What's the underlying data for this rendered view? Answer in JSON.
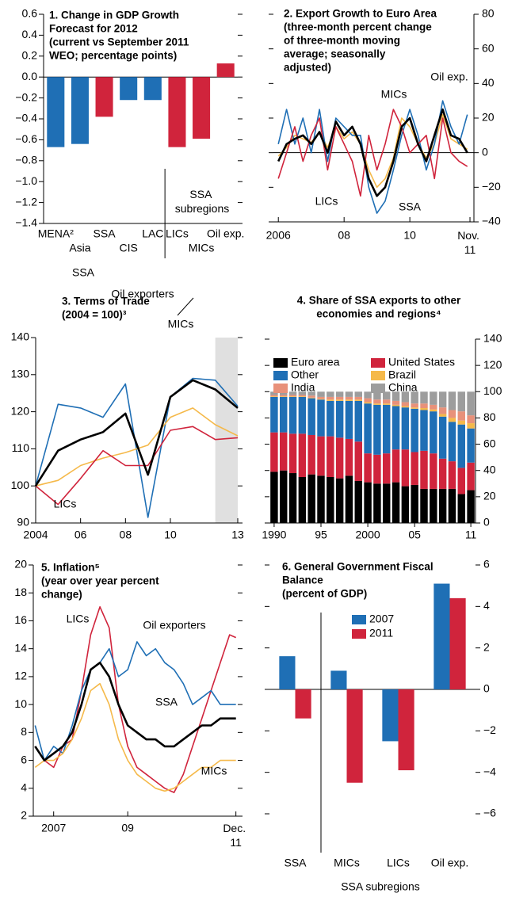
{
  "chart_data": [
    {
      "type": "bar",
      "title": [
        "1. Change in GDP Growth",
        "Forecast for 2012",
        "(current vs September 2011",
        "WEO; percentage points)"
      ],
      "categories": [
        "MENA²",
        "Asia",
        "SSA",
        "CIS",
        "LAC",
        "LICs",
        "MICs",
        "Oil exp."
      ],
      "values": [
        -0.67,
        -0.64,
        -0.38,
        -0.22,
        -0.22,
        -0.67,
        -0.59,
        0.13
      ],
      "colors": [
        "#1f6fb5",
        "#1f6fb5",
        "#d0243c",
        "#1f6fb5",
        "#1f6fb5",
        "#d0243c",
        "#d0243c",
        "#d0243c"
      ],
      "annotation": "SSA subregions",
      "ylim": [
        -1.4,
        0.6
      ],
      "yticks": [
        0.6,
        0.4,
        0.2,
        {
          "value": 0,
          "label": "0.0"
        },
        {
          "value": -0.2,
          "label": "−0.2"
        },
        {
          "value": -0.4,
          "label": "−0.4"
        },
        {
          "value": -0.6,
          "label": "−0.6"
        },
        {
          "value": -0.8,
          "label": "−0.8"
        },
        {
          "value": -1.0,
          "label": "−1.0"
        },
        {
          "value": -1.2,
          "label": "−1.2"
        },
        {
          "value": -1.4,
          "label": "−1.4"
        }
      ]
    },
    {
      "type": "line",
      "title": [
        "2. Export Growth to Euro Area",
        "(three-month  percent change",
        "of three-month moving",
        "average; seasonally",
        "adjusted)"
      ],
      "x": [
        2006,
        2006.25,
        2006.5,
        2006.75,
        2007,
        2007.25,
        2007.5,
        2007.75,
        2008,
        2008.25,
        2008.5,
        2008.75,
        2009,
        2009.25,
        2009.5,
        2009.75,
        2010,
        2010.25,
        2010.5,
        2010.75,
        2011,
        2011.25,
        2011.5,
        2011.75
      ],
      "series": [
        {
          "name": "SSA",
          "color": "#000000",
          "values": [
            -5,
            5,
            8,
            10,
            5,
            12,
            0,
            18,
            10,
            15,
            5,
            -15,
            -25,
            -20,
            -5,
            15,
            20,
            5,
            -5,
            10,
            25,
            10,
            8,
            0
          ]
        },
        {
          "name": "MICs",
          "color": "#f5b94a",
          "values": [
            -2,
            3,
            10,
            8,
            6,
            12,
            3,
            15,
            8,
            12,
            5,
            -10,
            -20,
            -15,
            -3,
            20,
            15,
            5,
            -3,
            5,
            22,
            8,
            5,
            2
          ]
        },
        {
          "name": "Oil exp.",
          "color": "#1f6fb5",
          "values": [
            5,
            25,
            5,
            20,
            0,
            25,
            -5,
            20,
            15,
            10,
            10,
            -20,
            -35,
            -28,
            -10,
            10,
            25,
            10,
            -10,
            5,
            30,
            15,
            5,
            22
          ]
        },
        {
          "name": "LICs",
          "color": "#d0243c",
          "values": [
            -15,
            0,
            15,
            -5,
            10,
            20,
            -10,
            15,
            5,
            -5,
            -25,
            10,
            -10,
            5,
            25,
            15,
            0,
            5,
            10,
            -15,
            20,
            0,
            -5,
            -8
          ]
        }
      ],
      "xlim": [
        2005.85,
        2011.95
      ],
      "xticks": [
        2006,
        {
          "value": 2008,
          "label": "08"
        },
        {
          "value": 2010,
          "label": "10"
        },
        {
          "value": 2011.83,
          "label": "Nov. 11"
        }
      ],
      "ylim": [
        -40,
        80
      ],
      "yticks": [
        {
          "value": -40,
          "label": "−40"
        },
        {
          "value": -20,
          "label": "−20"
        },
        0,
        20,
        40,
        60,
        80
      ]
    },
    {
      "type": "line",
      "title": [
        "3. Terms of Trade",
        "(2004 = 100)³"
      ],
      "x": [
        2004,
        2005,
        2006,
        2007,
        2008,
        2009,
        2010,
        2011,
        2012,
        2013
      ],
      "series": [
        {
          "name": "Oil exporters",
          "color": "#1f6fb5",
          "values": [
            100,
            122,
            121,
            118.5,
            127.5,
            91.5,
            124,
            129,
            128.5,
            121.5
          ]
        },
        {
          "name": "SSA",
          "color": "#000000",
          "values": [
            100,
            109.5,
            112.5,
            114.5,
            119.5,
            103,
            124,
            128.5,
            126,
            121
          ]
        },
        {
          "name": "MICs",
          "color": "#f5b94a",
          "values": [
            100,
            101.5,
            105.5,
            107.5,
            109,
            111,
            118.5,
            121,
            116.5,
            113.5
          ]
        },
        {
          "name": "LICs",
          "color": "#d0243c",
          "values": [
            100,
            95,
            102,
            109.5,
            105.5,
            105.5,
            115,
            116,
            112.5,
            113
          ]
        }
      ],
      "shaded_span": [
        2012,
        2013
      ],
      "xlim": [
        2004,
        2013
      ],
      "xticks": [
        2004,
        {
          "value": 2006,
          "label": "06"
        },
        {
          "value": 2008,
          "label": "08"
        },
        {
          "value": 2010,
          "label": "10"
        },
        {
          "value": 2013,
          "label": "13"
        }
      ],
      "ylim": [
        90,
        140
      ],
      "yticks": [
        90,
        100,
        110,
        120,
        130,
        140
      ]
    },
    {
      "type": "bar",
      "stacked": true,
      "title": [
        "4. Share of SSA exports to other",
        "economies and regions⁴"
      ],
      "categories": [
        "1990",
        null,
        null,
        null,
        null,
        "95",
        null,
        null,
        null,
        null,
        "2000",
        null,
        null,
        null,
        null,
        "05",
        null,
        null,
        null,
        null,
        null,
        "11"
      ],
      "series": [
        {
          "name": "Euro area",
          "color": "#000000",
          "values": [
            39,
            40,
            38,
            35,
            37,
            36,
            35,
            34,
            36,
            32,
            31,
            30,
            30,
            31,
            28,
            29,
            26,
            26,
            26,
            26,
            22,
            25
          ]
        },
        {
          "name": "United States",
          "color": "#d0243c",
          "values": [
            30,
            29,
            30,
            33,
            30,
            30,
            31,
            31,
            28,
            30,
            22,
            22,
            23,
            25,
            28,
            25,
            29,
            27,
            23,
            21,
            20,
            21
          ]
        },
        {
          "name": "Other",
          "color": "#1f6fb5",
          "values": [
            27,
            27,
            28,
            28,
            28,
            28,
            27,
            28,
            29,
            31,
            38,
            38,
            37,
            33,
            32,
            33,
            31,
            32,
            32,
            30,
            33,
            26
          ]
        },
        {
          "name": "Brazil",
          "color": "#f5b94a",
          "values": [
            0.5,
            0.5,
            0.5,
            0.5,
            0.5,
            0.5,
            1,
            1,
            1,
            1,
            1,
            1,
            1,
            1,
            1,
            1,
            1.5,
            1.5,
            2,
            3,
            3,
            4
          ]
        },
        {
          "name": "India",
          "color": "#e8917a",
          "values": [
            1,
            1,
            1,
            1,
            1.5,
            1.5,
            2,
            2,
            2,
            2,
            3,
            3,
            3,
            3,
            3,
            3,
            3.5,
            3.5,
            5,
            6,
            7,
            6
          ]
        },
        {
          "name": "China",
          "color": "#9d9d9d",
          "values": [
            2.5,
            2.5,
            2.5,
            2.5,
            3,
            4,
            4,
            4,
            4,
            4,
            5,
            6,
            6,
            7,
            8,
            9,
            9,
            10,
            12,
            14,
            15,
            18
          ]
        }
      ],
      "ylim": [
        0,
        140
      ],
      "yticks": [
        0,
        20,
        40,
        60,
        80,
        100,
        120,
        140
      ]
    },
    {
      "type": "line",
      "title": [
        "5. Inflation⁵",
        "(year over year percent",
        "change)"
      ],
      "x": [
        2006.5,
        2006.75,
        2007,
        2007.25,
        2007.5,
        2007.75,
        2008,
        2008.25,
        2008.5,
        2008.75,
        2009,
        2009.25,
        2009.5,
        2009.75,
        2010,
        2010.25,
        2010.5,
        2010.75,
        2011,
        2011.25,
        2011.5,
        2011.75,
        2011.92
      ],
      "series": [
        {
          "name": "LICs",
          "color": "#d0243c",
          "values": [
            7,
            6,
            5.5,
            7,
            7.5,
            11,
            15,
            17,
            15.5,
            10,
            7,
            5.5,
            5,
            4.5,
            4,
            3.7,
            5,
            7,
            9,
            11,
            13,
            15,
            14.8
          ]
        },
        {
          "name": "Oil exporters",
          "color": "#1f6fb5",
          "values": [
            8.5,
            6,
            7,
            6.5,
            8.5,
            11,
            12.5,
            13,
            14,
            12,
            12.5,
            14.5,
            13.5,
            14,
            13,
            12.5,
            11.5,
            10,
            10.5,
            11,
            10,
            10,
            10
          ]
        },
        {
          "name": "SSA",
          "color": "#000000",
          "values": [
            7,
            6,
            6.5,
            7,
            8,
            10,
            12.5,
            13,
            12,
            10,
            8.5,
            8,
            7.5,
            7.5,
            7,
            7,
            7.5,
            8,
            8.5,
            8.5,
            9,
            9,
            9
          ]
        },
        {
          "name": "MICs",
          "color": "#f5b94a",
          "values": [
            5.5,
            6,
            6,
            6.5,
            7.5,
            9,
            11,
            11.5,
            10,
            7.5,
            6,
            5,
            4.5,
            4,
            3.8,
            4,
            4.5,
            5,
            5.5,
            5.5,
            6,
            6,
            6
          ]
        }
      ],
      "xlim": [
        2006.45,
        2011.97
      ],
      "xticks": [
        2007,
        {
          "value": 2009,
          "label": "09"
        },
        {
          "value": 2011.92,
          "label": "Dec. 11"
        }
      ],
      "ylim": [
        2,
        20
      ],
      "yticks": [
        2,
        4,
        6,
        8,
        10,
        12,
        14,
        16,
        18,
        20
      ]
    },
    {
      "type": "bar",
      "title": [
        "6. General Government Fiscal",
        "Balance",
        "(percent of GDP)"
      ],
      "categories": [
        "SSA",
        "MICs",
        "LICs",
        "Oil exp."
      ],
      "series": [
        {
          "name": "2007",
          "color": "#1f6fb5",
          "values": [
            1.6,
            0.9,
            -2.5,
            5.1
          ]
        },
        {
          "name": "2011",
          "color": "#d0243c",
          "values": [
            -1.4,
            -4.5,
            -3.9,
            4.4
          ]
        }
      ],
      "annotation": "SSA subregions",
      "ylim": [
        -6,
        6
      ],
      "yticks": [
        {
          "value": -6,
          "label": "−6"
        },
        {
          "value": -4,
          "label": "−4"
        },
        {
          "value": -2,
          "label": "−2"
        },
        0,
        2,
        4,
        6
      ]
    }
  ]
}
